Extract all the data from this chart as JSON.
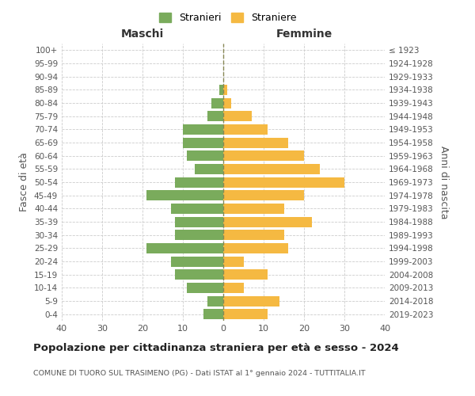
{
  "age_groups": [
    "0-4",
    "5-9",
    "10-14",
    "15-19",
    "20-24",
    "25-29",
    "30-34",
    "35-39",
    "40-44",
    "45-49",
    "50-54",
    "55-59",
    "60-64",
    "65-69",
    "70-74",
    "75-79",
    "80-84",
    "85-89",
    "90-94",
    "95-99",
    "100+"
  ],
  "birth_years": [
    "2019-2023",
    "2014-2018",
    "2009-2013",
    "2004-2008",
    "1999-2003",
    "1994-1998",
    "1989-1993",
    "1984-1988",
    "1979-1983",
    "1974-1978",
    "1969-1973",
    "1964-1968",
    "1959-1963",
    "1954-1958",
    "1949-1953",
    "1944-1948",
    "1939-1943",
    "1934-1938",
    "1929-1933",
    "1924-1928",
    "≤ 1923"
  ],
  "maschi": [
    5,
    4,
    9,
    12,
    13,
    19,
    12,
    12,
    13,
    19,
    12,
    7,
    9,
    10,
    10,
    4,
    3,
    1,
    0,
    0,
    0
  ],
  "femmine": [
    11,
    14,
    5,
    11,
    5,
    16,
    15,
    22,
    15,
    20,
    30,
    24,
    20,
    16,
    11,
    7,
    2,
    1,
    0,
    0,
    0
  ],
  "color_maschi": "#7aab5c",
  "color_femmine": "#f5b942",
  "title": "Popolazione per cittadinanza straniera per età e sesso - 2024",
  "subtitle": "COMUNE DI TUORO SUL TRASIMENO (PG) - Dati ISTAT al 1° gennaio 2024 - TUTTITALIA.IT",
  "xlabel_left": "Maschi",
  "xlabel_right": "Femmine",
  "ylabel_left": "Fasce di età",
  "ylabel_right": "Anni di nascita",
  "legend_maschi": "Stranieri",
  "legend_femmine": "Straniere",
  "xlim": 40,
  "background_color": "#ffffff",
  "grid_color": "#cccccc"
}
